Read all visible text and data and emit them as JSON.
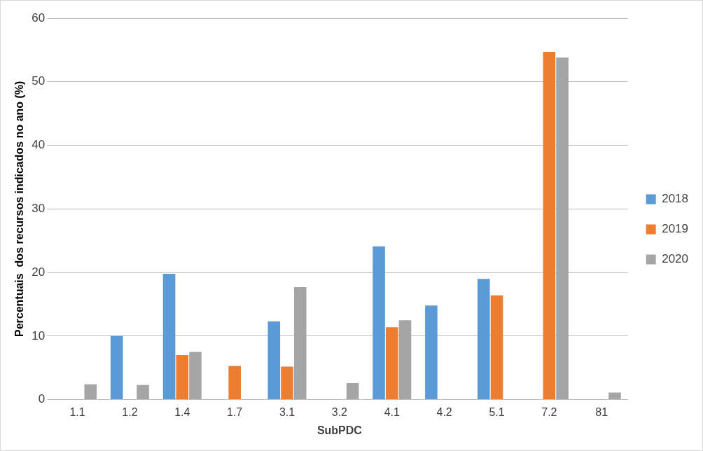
{
  "chart_data": {
    "type": "bar",
    "xlabel": "SubPDC",
    "ylabel": "Percentuais  dos recursos indicados no ano (%)",
    "categories": [
      "1.1",
      "1.2",
      "1.4",
      "1.7",
      "3.1",
      "3.2",
      "4.1",
      "4.2",
      "5.1",
      "7.2",
      "81"
    ],
    "series": [
      {
        "name": "2018",
        "color": "#5b9bd5",
        "values": [
          null,
          10,
          19.8,
          null,
          12.3,
          null,
          24.1,
          14.8,
          19,
          null,
          null
        ]
      },
      {
        "name": "2019",
        "color": "#ed7d31",
        "values": [
          null,
          null,
          7,
          5.3,
          5.2,
          null,
          11.4,
          null,
          16.4,
          54.7,
          null
        ]
      },
      {
        "name": "2020",
        "color": "#a5a5a5",
        "values": [
          2.4,
          2.3,
          7.5,
          null,
          17.7,
          2.6,
          12.5,
          null,
          null,
          53.8,
          1.1
        ]
      }
    ],
    "ylim": [
      0,
      60
    ],
    "yticks": [
      0,
      10,
      20,
      30,
      40,
      50,
      60
    ],
    "grid": "y",
    "legend": "right"
  }
}
